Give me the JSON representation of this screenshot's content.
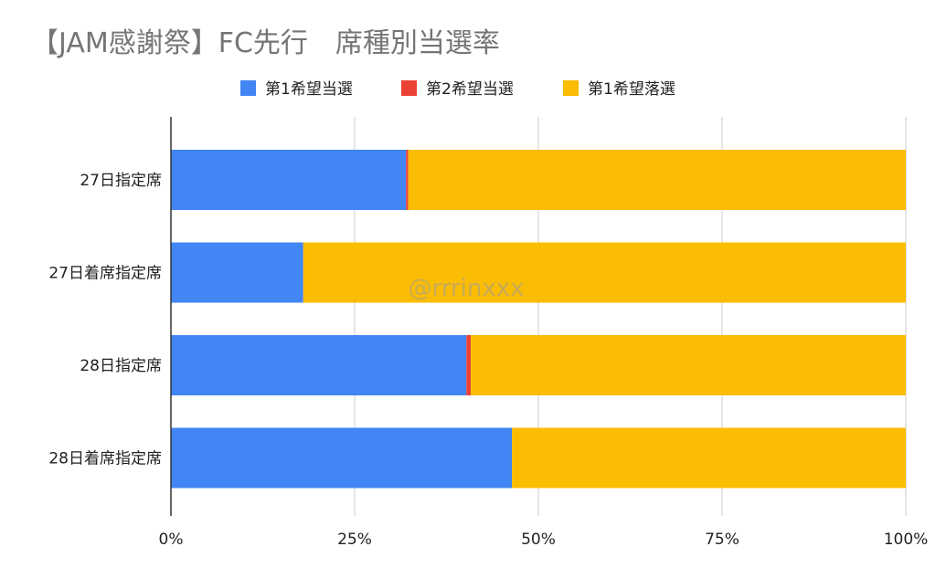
{
  "chart_data": {
    "type": "bar",
    "orientation": "horizontal",
    "stacked": "percent",
    "title": "【JAM感謝祭】FC先行　席種別当選率",
    "categories": [
      "27日指定席",
      "27日着席指定席",
      "28日指定席",
      "28日着席指定席"
    ],
    "series": [
      {
        "name": "第1希望当選",
        "color": "#4285f4",
        "values": [
          32.0,
          18.0,
          40.2,
          46.4
        ]
      },
      {
        "name": "第2希望当選",
        "color": "#ea4335",
        "values": [
          0.3,
          0.0,
          0.6,
          0.0
        ]
      },
      {
        "name": "第1希望落選",
        "color": "#fbbc04",
        "values": [
          67.7,
          82.0,
          59.2,
          53.6
        ]
      }
    ],
    "xlim": [
      0,
      100
    ],
    "xticks": [
      "0%",
      "25%",
      "50%",
      "75%",
      "100%"
    ],
    "grid": true,
    "legend_position": "top"
  },
  "watermark": "@rrrinxxx"
}
